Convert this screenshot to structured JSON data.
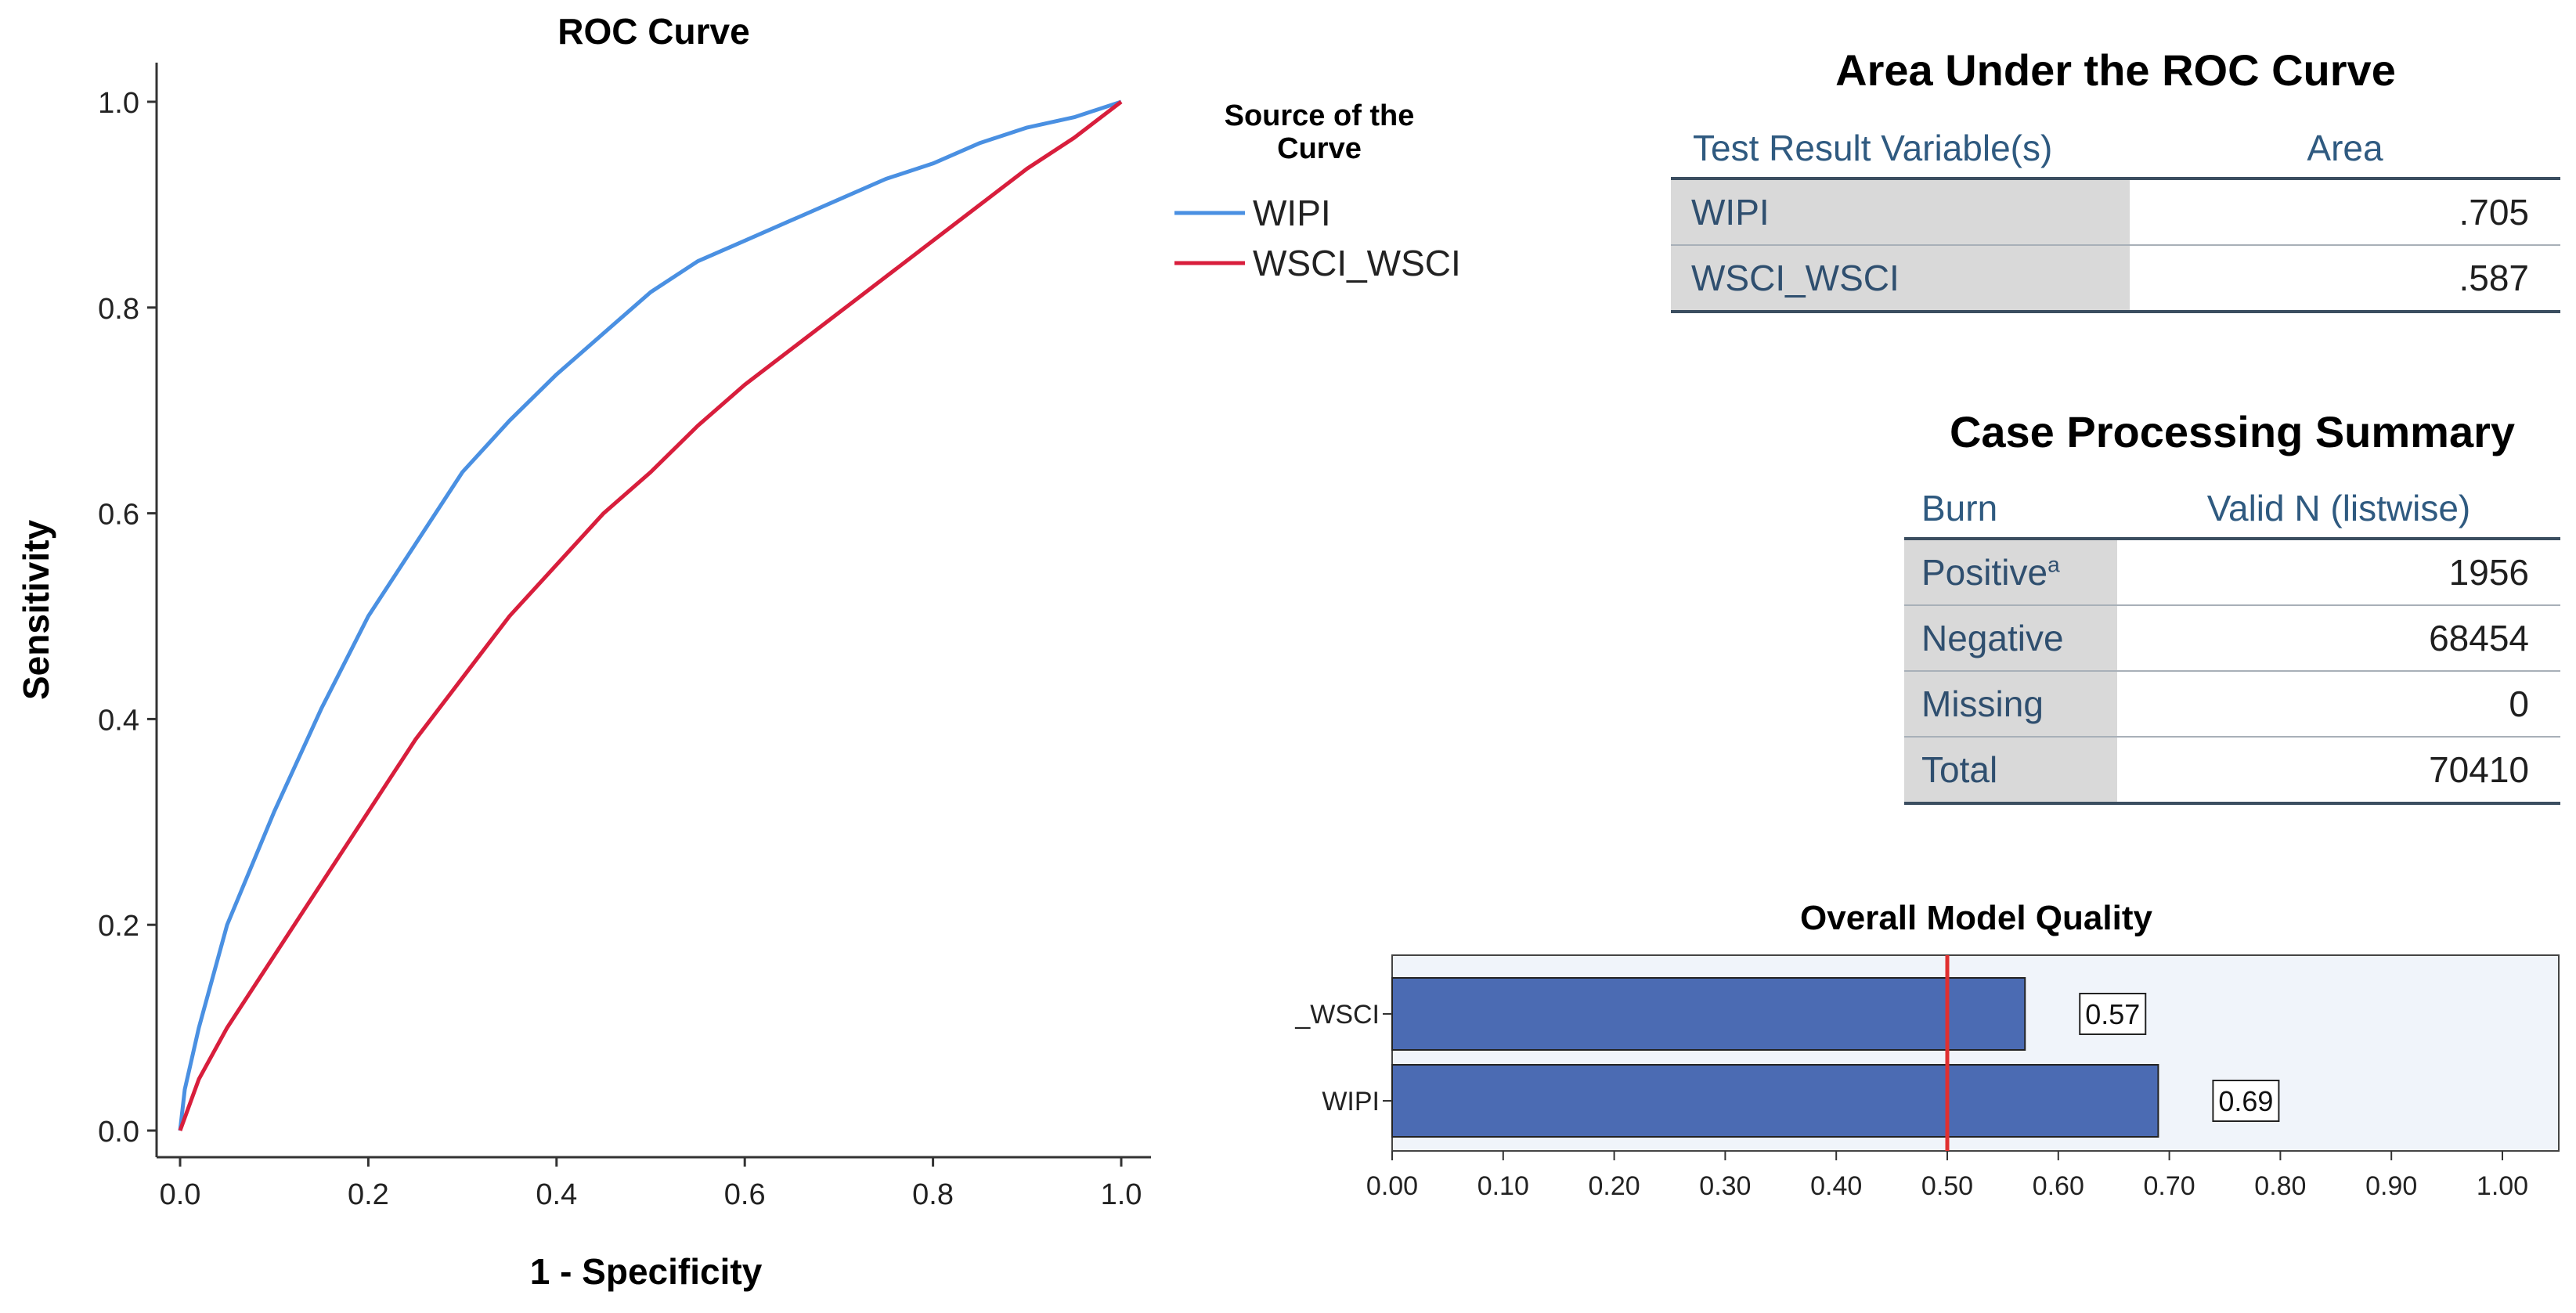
{
  "chart_data": [
    {
      "type": "line",
      "title": "ROC Curve",
      "xlabel": "1 - Specificity",
      "ylabel": "Sensitivity",
      "xlim": [
        0,
        1
      ],
      "ylim": [
        0,
        1
      ],
      "xticks": [
        "0.0",
        "0.2",
        "0.4",
        "0.6",
        "0.8",
        "1.0"
      ],
      "yticks": [
        "0.0",
        "0.2",
        "0.4",
        "0.6",
        "0.8",
        "1.0"
      ],
      "legend": {
        "title": "Source of the Curve",
        "position": "right"
      },
      "series": [
        {
          "name": "WIPI",
          "color": "#4a90e2",
          "x": [
            0,
            0.005,
            0.02,
            0.05,
            0.1,
            0.15,
            0.2,
            0.25,
            0.3,
            0.35,
            0.4,
            0.45,
            0.5,
            0.55,
            0.6,
            0.65,
            0.7,
            0.75,
            0.8,
            0.85,
            0.9,
            0.95,
            1.0
          ],
          "y": [
            0,
            0.04,
            0.1,
            0.2,
            0.31,
            0.41,
            0.5,
            0.57,
            0.64,
            0.69,
            0.735,
            0.775,
            0.815,
            0.845,
            0.865,
            0.885,
            0.905,
            0.925,
            0.94,
            0.96,
            0.975,
            0.985,
            1.0
          ]
        },
        {
          "name": "WSCI_WSCI",
          "color": "#d81e3c",
          "x": [
            0,
            0.02,
            0.05,
            0.1,
            0.15,
            0.2,
            0.25,
            0.3,
            0.35,
            0.4,
            0.45,
            0.5,
            0.55,
            0.6,
            0.65,
            0.7,
            0.75,
            0.8,
            0.85,
            0.9,
            0.95,
            1.0
          ],
          "y": [
            0,
            0.05,
            0.1,
            0.17,
            0.24,
            0.31,
            0.38,
            0.44,
            0.5,
            0.55,
            0.6,
            0.64,
            0.685,
            0.725,
            0.76,
            0.795,
            0.83,
            0.865,
            0.9,
            0.935,
            0.965,
            1.0
          ]
        }
      ]
    },
    {
      "type": "bar",
      "orientation": "horizontal",
      "title": "Overall Model Quality",
      "categories": [
        "_WSCI",
        "WIPI"
      ],
      "values": [
        0.57,
        0.69
      ],
      "value_labels": [
        "0.57",
        "0.69"
      ],
      "xlim": [
        0,
        1
      ],
      "xticks": [
        "0.00",
        "0.10",
        "0.20",
        "0.30",
        "0.40",
        "0.50",
        "0.60",
        "0.70",
        "0.80",
        "0.90",
        "1.00"
      ],
      "reference_line": 0.5,
      "bar_color": "#4b6bb3",
      "reference_color": "#e03030",
      "background": "#f0f4fa"
    }
  ],
  "auc_table": {
    "title": "Area Under the ROC Curve",
    "col_headers": [
      "Test Result Variable(s)",
      "Area"
    ],
    "rows": [
      {
        "label": "WIPI",
        "value": ".705"
      },
      {
        "label": "WSCI_WSCI",
        "value": ".587"
      }
    ]
  },
  "case_table": {
    "title": "Case Processing Summary",
    "col_headers": [
      "Burn",
      "Valid N (listwise)"
    ],
    "rows": [
      {
        "label": "Positive",
        "sup": "a",
        "value": "1956"
      },
      {
        "label": "Negative",
        "value": "68454"
      },
      {
        "label": "Missing",
        "value": "0"
      },
      {
        "label": "Total",
        "value": "70410"
      }
    ]
  }
}
